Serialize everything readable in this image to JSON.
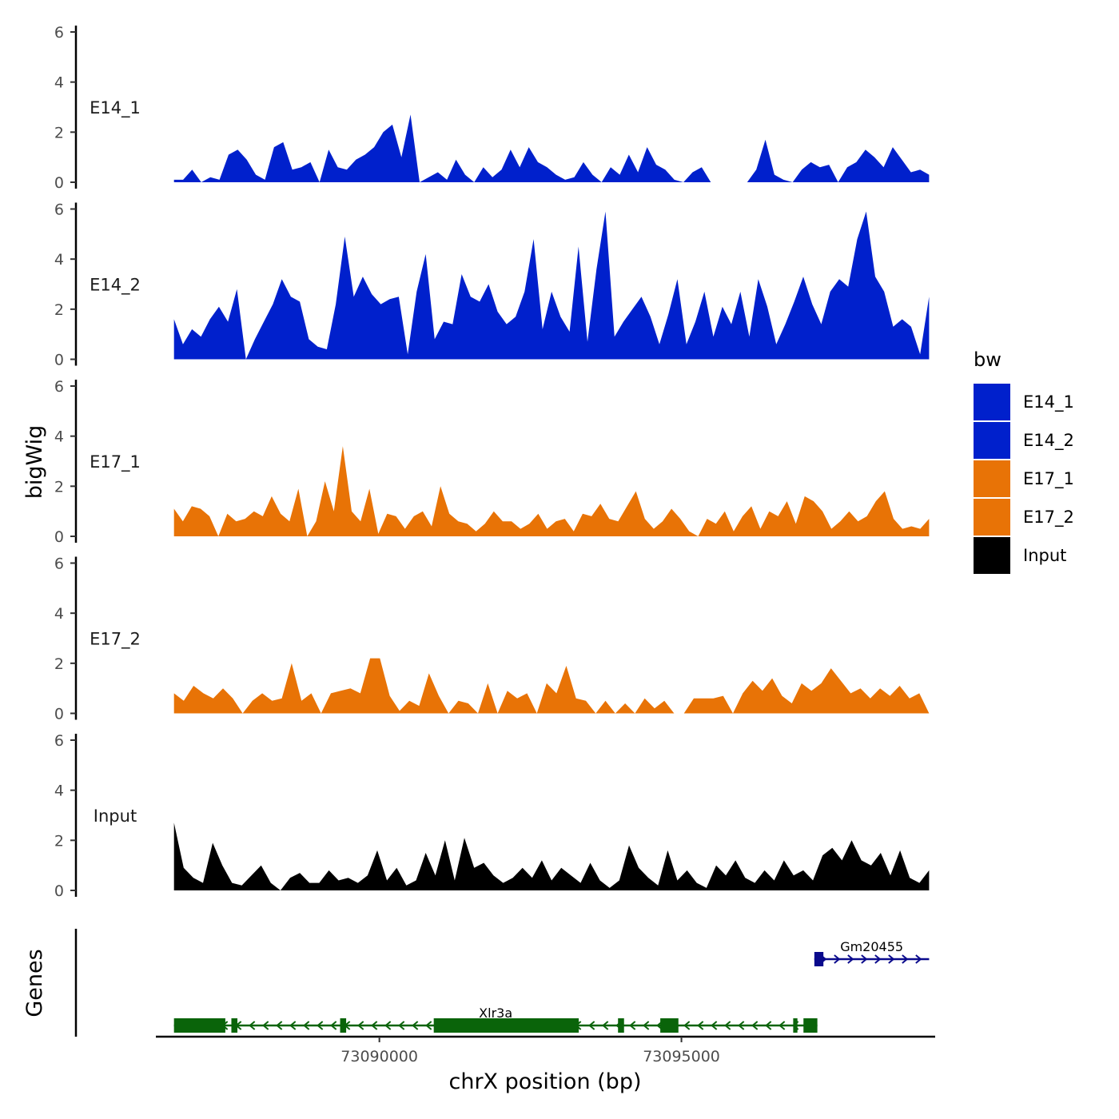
{
  "chart_data": {
    "type": "area",
    "ylabel": "bigWig",
    "xlabel": "chrX position (bp)",
    "ylim": [
      0,
      6
    ],
    "yticks": [
      0,
      2,
      4,
      6
    ],
    "ytick_labels": [
      "0",
      "2",
      "4",
      "6"
    ],
    "xlim": [
      73086300,
      73099200
    ],
    "xticks": [
      73090000,
      73095000
    ],
    "xtick_labels": [
      "73090000",
      "73095000"
    ],
    "track_range": [
      73086600,
      73099100
    ],
    "legend": {
      "title": "bw",
      "position": "right",
      "entries": [
        {
          "label": "E14_1",
          "color": "#0020CC"
        },
        {
          "label": "E14_2",
          "color": "#0020CC"
        },
        {
          "label": "E17_1",
          "color": "#E87306"
        },
        {
          "label": "E17_2",
          "color": "#E87306"
        },
        {
          "label": "Input",
          "color": "#000000"
        }
      ]
    },
    "series": [
      {
        "name": "E14_1",
        "color": "#0020CC",
        "values": [
          0.1,
          0.1,
          0.5,
          0.0,
          0.2,
          0.1,
          1.1,
          1.3,
          0.9,
          0.3,
          0.1,
          1.4,
          1.6,
          0.5,
          0.6,
          0.8,
          0.0,
          1.3,
          0.6,
          0.5,
          0.9,
          1.1,
          1.4,
          2.0,
          2.3,
          1.0,
          2.7,
          0.0,
          0.2,
          0.4,
          0.1,
          0.9,
          0.3,
          0.0,
          0.6,
          0.2,
          0.5,
          1.3,
          0.6,
          1.4,
          0.8,
          0.6,
          0.3,
          0.1,
          0.2,
          0.8,
          0.3,
          0.0,
          0.6,
          0.3,
          1.1,
          0.4,
          1.4,
          0.7,
          0.5,
          0.1,
          0.0,
          0.4,
          0.6,
          0.0,
          0.0,
          0.0,
          0.0,
          0.0,
          0.5,
          1.7,
          0.3,
          0.1,
          0.0,
          0.5,
          0.8,
          0.6,
          0.7,
          0.0,
          0.6,
          0.8,
          1.3,
          1.0,
          0.6,
          1.4,
          0.9,
          0.4,
          0.5,
          0.3
        ]
      },
      {
        "name": "E14_2",
        "color": "#0020CC",
        "values": [
          1.6,
          0.6,
          1.2,
          0.9,
          1.6,
          2.1,
          1.5,
          2.8,
          0.0,
          0.8,
          1.5,
          2.2,
          3.2,
          2.5,
          2.3,
          0.8,
          0.5,
          0.4,
          2.2,
          4.9,
          2.5,
          3.3,
          2.6,
          2.2,
          2.4,
          2.5,
          0.2,
          2.7,
          4.2,
          0.8,
          1.5,
          1.4,
          3.4,
          2.5,
          2.3,
          3.0,
          1.9,
          1.4,
          1.7,
          2.7,
          4.8,
          1.2,
          2.7,
          1.7,
          1.1,
          4.5,
          0.7,
          3.6,
          5.9,
          0.9,
          1.5,
          2.0,
          2.5,
          1.7,
          0.6,
          1.8,
          3.2,
          0.6,
          1.5,
          2.7,
          0.9,
          2.1,
          1.4,
          2.7,
          0.9,
          3.2,
          2.1,
          0.6,
          1.4,
          2.3,
          3.3,
          2.2,
          1.4,
          2.7,
          3.2,
          2.9,
          4.8,
          5.9,
          3.3,
          2.7,
          1.3,
          1.6,
          1.3,
          0.2,
          2.5
        ]
      },
      {
        "name": "E17_1",
        "color": "#E87306",
        "values": [
          1.1,
          0.6,
          1.2,
          1.1,
          0.8,
          0.0,
          0.9,
          0.6,
          0.7,
          1.0,
          0.8,
          1.6,
          0.9,
          0.6,
          1.9,
          0.0,
          0.6,
          2.2,
          1.0,
          3.6,
          1.0,
          0.6,
          1.9,
          0.1,
          0.9,
          0.8,
          0.3,
          0.8,
          1.0,
          0.4,
          2.0,
          0.9,
          0.6,
          0.5,
          0.2,
          0.5,
          1.0,
          0.6,
          0.6,
          0.3,
          0.5,
          0.9,
          0.3,
          0.6,
          0.7,
          0.2,
          0.9,
          0.8,
          1.3,
          0.7,
          0.6,
          1.2,
          1.8,
          0.7,
          0.3,
          0.6,
          1.1,
          0.7,
          0.2,
          0.0,
          0.7,
          0.5,
          1.0,
          0.2,
          0.8,
          1.2,
          0.3,
          1.0,
          0.8,
          1.4,
          0.5,
          1.6,
          1.4,
          1.0,
          0.3,
          0.6,
          1.0,
          0.6,
          0.8,
          1.4,
          1.8,
          0.7,
          0.3,
          0.4,
          0.3,
          0.7
        ]
      },
      {
        "name": "E17_2",
        "color": "#E87306",
        "values": [
          0.8,
          0.5,
          1.1,
          0.8,
          0.6,
          1.0,
          0.6,
          0.0,
          0.5,
          0.8,
          0.5,
          0.6,
          2.0,
          0.5,
          0.8,
          0.0,
          0.8,
          0.9,
          1.0,
          0.8,
          2.2,
          2.2,
          0.7,
          0.1,
          0.5,
          0.3,
          1.6,
          0.7,
          0.0,
          0.5,
          0.4,
          0.0,
          1.2,
          0.0,
          0.9,
          0.6,
          0.8,
          0.0,
          1.2,
          0.8,
          1.9,
          0.6,
          0.5,
          0.0,
          0.5,
          0.0,
          0.4,
          0.0,
          0.6,
          0.2,
          0.5,
          0.0,
          0.0,
          0.6,
          0.6,
          0.6,
          0.7,
          0.0,
          0.8,
          1.3,
          0.9,
          1.4,
          0.7,
          0.4,
          1.2,
          0.9,
          1.2,
          1.8,
          1.3,
          0.8,
          1.0,
          0.6,
          1.0,
          0.7,
          1.1,
          0.6,
          0.8,
          0.0
        ]
      },
      {
        "name": "Input",
        "color": "#000000",
        "values": [
          2.7,
          0.9,
          0.5,
          0.3,
          1.9,
          1.0,
          0.3,
          0.2,
          0.6,
          1.0,
          0.3,
          0.0,
          0.5,
          0.7,
          0.3,
          0.3,
          0.8,
          0.4,
          0.5,
          0.3,
          0.6,
          1.6,
          0.4,
          0.9,
          0.2,
          0.4,
          1.5,
          0.6,
          2.0,
          0.4,
          2.1,
          0.9,
          1.1,
          0.6,
          0.3,
          0.5,
          0.9,
          0.5,
          1.2,
          0.4,
          0.9,
          0.6,
          0.3,
          1.1,
          0.4,
          0.1,
          0.4,
          1.8,
          0.9,
          0.5,
          0.2,
          1.6,
          0.4,
          0.8,
          0.3,
          0.1,
          1.0,
          0.6,
          1.2,
          0.5,
          0.3,
          0.8,
          0.4,
          1.2,
          0.6,
          0.8,
          0.4,
          1.4,
          1.7,
          1.2,
          2.0,
          1.2,
          1.0,
          1.5,
          0.6,
          1.6,
          0.5,
          0.3,
          0.8
        ]
      }
    ],
    "genes_panel": {
      "ylabel": "Genes",
      "genes": [
        {
          "name": "Gm20455",
          "strand": "+",
          "color": "#0A0A8C",
          "start": 73097200,
          "end": 73099100,
          "exons": [
            [
              73097200,
              73097350
            ]
          ]
        },
        {
          "name": "Xlr3a",
          "strand": "-",
          "color": "#0A640A",
          "start": 73086600,
          "end": 73097250,
          "exons": [
            [
              73086600,
              73087450
            ],
            [
              73087550,
              73087650
            ],
            [
              73089350,
              73089450
            ],
            [
              73090900,
              73093300
            ],
            [
              73093950,
              73094050
            ],
            [
              73094650,
              73094950
            ],
            [
              73096850,
              73096920
            ],
            [
              73097020,
              73097250
            ]
          ]
        }
      ]
    }
  }
}
